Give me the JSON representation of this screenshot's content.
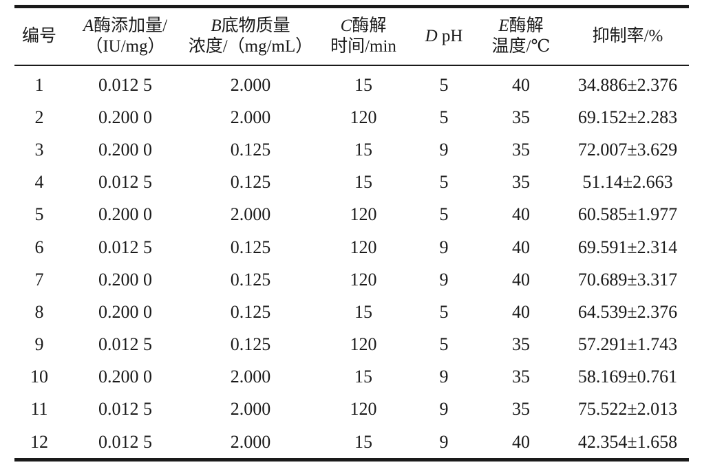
{
  "table": {
    "headers": [
      {
        "line1_var": "",
        "line1": "编号",
        "line2": ""
      },
      {
        "line1_var": "A",
        "line1": "酶添加量/",
        "line2": "（IU/mg）"
      },
      {
        "line1_var": "B",
        "line1": "底物质量",
        "line2": "浓度/（mg/mL）"
      },
      {
        "line1_var": "C",
        "line1": "酶解",
        "line2": "时间/min"
      },
      {
        "line1_var": "D",
        "line1": " pH",
        "line2": ""
      },
      {
        "line1_var": "E",
        "line1": "酶解",
        "line2": "温度/℃"
      },
      {
        "line1_var": "",
        "line1": "抑制率/%",
        "line2": ""
      }
    ],
    "rows": [
      [
        "1",
        "0.012 5",
        "2.000",
        "15",
        "5",
        "40",
        "34.886±2.376"
      ],
      [
        "2",
        "0.200 0",
        "2.000",
        "120",
        "5",
        "35",
        "69.152±2.283"
      ],
      [
        "3",
        "0.200 0",
        "0.125",
        "15",
        "9",
        "35",
        "72.007±3.629"
      ],
      [
        "4",
        "0.012 5",
        "0.125",
        "15",
        "5",
        "35",
        "51.14±2.663"
      ],
      [
        "5",
        "0.200 0",
        "2.000",
        "120",
        "5",
        "40",
        "60.585±1.977"
      ],
      [
        "6",
        "0.012 5",
        "0.125",
        "120",
        "9",
        "40",
        "69.591±2.314"
      ],
      [
        "7",
        "0.200 0",
        "0.125",
        "120",
        "9",
        "40",
        "70.689±3.317"
      ],
      [
        "8",
        "0.200 0",
        "0.125",
        "15",
        "5",
        "40",
        "64.539±2.376"
      ],
      [
        "9",
        "0.012 5",
        "0.125",
        "120",
        "5",
        "35",
        "57.291±1.743"
      ],
      [
        "10",
        "0.200 0",
        "2.000",
        "15",
        "9",
        "35",
        "58.169±0.761"
      ],
      [
        "11",
        "0.012 5",
        "2.000",
        "120",
        "9",
        "35",
        "75.522±2.013"
      ],
      [
        "12",
        "0.012 5",
        "2.000",
        "15",
        "9",
        "40",
        "42.354±1.658"
      ]
    ]
  }
}
